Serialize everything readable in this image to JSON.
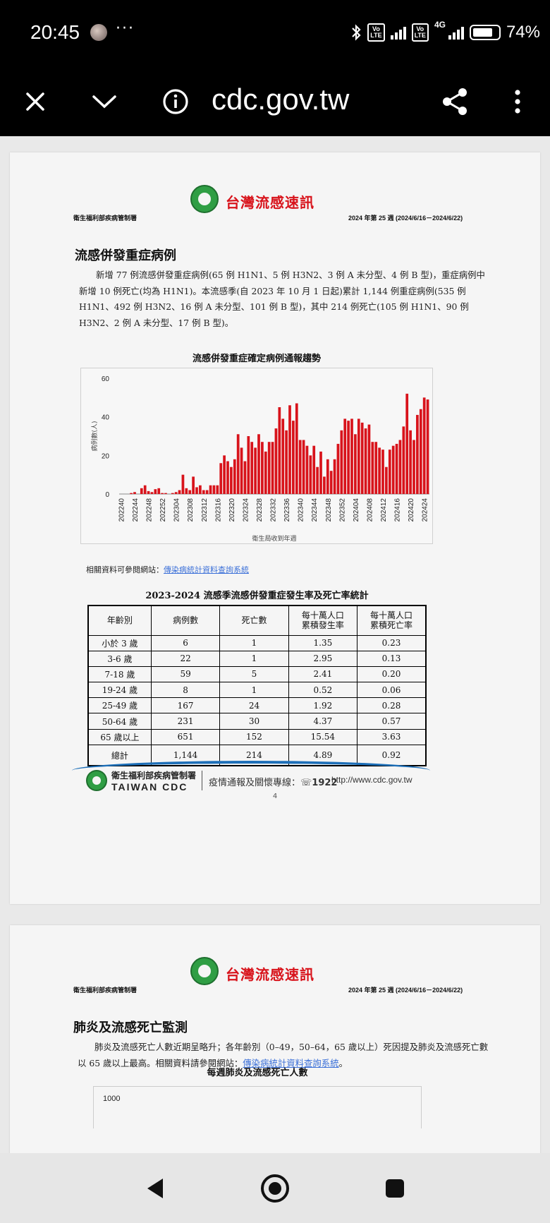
{
  "status_bar": {
    "time": "20:45",
    "more": "···",
    "volte1": "Vo\nLTE",
    "volte2": "Vo\nLTE",
    "network": "4G",
    "battery_percent": "74%",
    "battery_level": 0.74
  },
  "browser": {
    "url": "cdc.gov.tw",
    "icons": [
      "close-icon",
      "chevron-down-icon",
      "info-icon",
      "share-icon",
      "more-vert-icon"
    ]
  },
  "page4": {
    "header": {
      "title": "台灣流感速訊",
      "org": "衛生福利部疾病管制署",
      "week": "2024 年第 25 週 (2024/6/16－2024/6/22)"
    },
    "section_title": "流感併發重症病例",
    "paragraph": "新增 77 例流感併發重症病例(65 例 H1N1、5 例 H3N2、3 例 A 未分型、4 例 B 型)，重症病例中新增 10 例死亡(均為 H1N1)。本流感季(自 2023 年 10 月 1 日起)累計 1,144 例重症病例(535 例 H1N1、492 例 H3N2、16 例 A 未分型、101 例 B 型)，其中 214 例死亡(105 例 H1N1、90 例 H3N2、2 例 A 未分型、17 例 B 型)。",
    "chart_title": "流感併發重症確定病例通報趨勢",
    "ref_prefix": "相關資料可參閱網站：",
    "ref_link": "傳染病統計資料查詢系統",
    "table_title": "2023-2024 流感季流感併發重症發生率及死亡率統計",
    "table": {
      "headers": [
        "年齡別",
        "病例數",
        "死亡數",
        "每十萬人口\n累積發生率",
        "每十萬人口\n累積死亡率"
      ],
      "rows": [
        [
          "小於 3 歲",
          "6",
          "1",
          "1.35",
          "0.23"
        ],
        [
          "3-6 歲",
          "22",
          "1",
          "2.95",
          "0.13"
        ],
        [
          "7-18 歲",
          "59",
          "5",
          "2.41",
          "0.20"
        ],
        [
          "19-24 歲",
          "8",
          "1",
          "0.52",
          "0.06"
        ],
        [
          "25-49 歲",
          "167",
          "24",
          "1.92",
          "0.28"
        ],
        [
          "50-64 歲",
          "231",
          "30",
          "4.37",
          "0.57"
        ],
        [
          "65 歲以上",
          "651",
          "152",
          "15.54",
          "3.63"
        ],
        [
          "總計",
          "1,144",
          "214",
          "4.89",
          "0.92"
        ]
      ]
    },
    "footer": {
      "org": "衛生福利部疾病管制署",
      "cdc": "TAIWAN CDC",
      "hotline": "疫情通報及關懷專線：",
      "hotline_number": "1922",
      "url": "http://www.cdc.gov.tw"
    },
    "page_number": "4"
  },
  "chart_data": {
    "type": "bar",
    "title": "流感併發重症確定病例通報趨勢",
    "xlabel": "衛生局收到年週",
    "ylabel": "病例數(人)",
    "ylim": [
      0,
      60
    ],
    "yticks": [
      0,
      20,
      40,
      60
    ],
    "color": "#d8131b",
    "grid": false,
    "tick_labels": [
      "202240",
      "202244",
      "202248",
      "202252",
      "202304",
      "202308",
      "202312",
      "202316",
      "202320",
      "202324",
      "202328",
      "202332",
      "202336",
      "202340",
      "202344",
      "202348",
      "202352",
      "202404",
      "202408",
      "202412",
      "202416",
      "202420",
      "202424"
    ],
    "categories": [
      "202240",
      "202241",
      "202242",
      "202243",
      "202244",
      "202245",
      "202246",
      "202247",
      "202248",
      "202249",
      "202250",
      "202251",
      "202252",
      "202301",
      "202302",
      "202303",
      "202304",
      "202305",
      "202306",
      "202307",
      "202308",
      "202309",
      "202310",
      "202311",
      "202312",
      "202313",
      "202314",
      "202315",
      "202316",
      "202317",
      "202318",
      "202319",
      "202320",
      "202321",
      "202322",
      "202323",
      "202324",
      "202325",
      "202326",
      "202327",
      "202328",
      "202329",
      "202330",
      "202331",
      "202332",
      "202333",
      "202334",
      "202335",
      "202336",
      "202337",
      "202338",
      "202339",
      "202340",
      "202341",
      "202342",
      "202343",
      "202344",
      "202345",
      "202346",
      "202347",
      "202348",
      "202349",
      "202350",
      "202351",
      "202352",
      "202401",
      "202402",
      "202403",
      "202404",
      "202405",
      "202406",
      "202407",
      "202408",
      "202409",
      "202410",
      "202411",
      "202412",
      "202413",
      "202414",
      "202415",
      "202416",
      "202417",
      "202418",
      "202419",
      "202420",
      "202421",
      "202422",
      "202423",
      "202424",
      "202425"
    ],
    "values": [
      0,
      0,
      0,
      0.5,
      1,
      0,
      3,
      4.5,
      1.5,
      1,
      2.5,
      3,
      0.5,
      0.5,
      0,
      0.5,
      1,
      2,
      10,
      3,
      2,
      9,
      3.5,
      4.5,
      2,
      2,
      4.5,
      4.5,
      4.5,
      16,
      20,
      17,
      14,
      18,
      31,
      24,
      17,
      30,
      27,
      24,
      31,
      27,
      22,
      27,
      27,
      34,
      45,
      39,
      33,
      46,
      38,
      47,
      28,
      28,
      25,
      20,
      25,
      14,
      22,
      9,
      18,
      12,
      18,
      26,
      33,
      39,
      38,
      39,
      31,
      39,
      37,
      34,
      36,
      27,
      27,
      24,
      23,
      14,
      23,
      25,
      26,
      28,
      35,
      52,
      33,
      28,
      41,
      44,
      50,
      49
    ]
  },
  "page5": {
    "header": {
      "title": "台灣流感速訊",
      "org": "衛生福利部疾病管制署",
      "week": "2024 年第 25 週 (2024/6/16－2024/6/22)"
    },
    "section_title": "肺炎及流感死亡監測",
    "paragraph_text": "肺炎及流感死亡人數近期呈略升；各年齡別（0–49，50–64，65 歲以上）死因提及肺炎及流感死亡數以 65 歲以上最高。相關資料請參閱網站：",
    "paragraph_link": "傳染病統計資料查詢系統",
    "paragraph_end": "。",
    "chart_title": "每週肺炎及流感死亡人數",
    "chart_ytick": "1000"
  },
  "nav": {
    "icons": [
      "back-icon",
      "home-icon",
      "recents-icon"
    ]
  }
}
